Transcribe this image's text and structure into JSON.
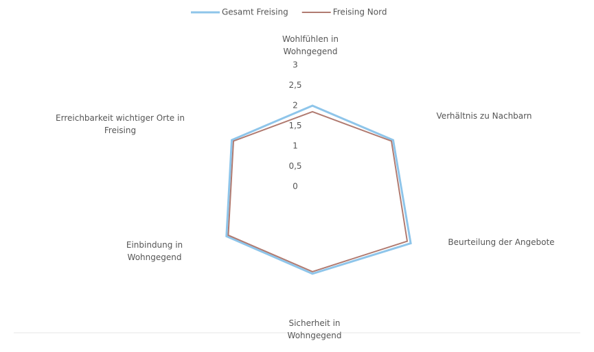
{
  "chart_data": {
    "type": "radar",
    "categories": [
      "Wohlfühlen in Wohngegend",
      "Verhältnis zu Nachbarn",
      "Beurteilung der Angebote",
      "Sicherheit in Wohngegend",
      "Einbindung in Wohngegend",
      "Erreichbarkeit wichtiger Orte in Freising"
    ],
    "series": [
      {
        "name": "Gesamt Freising",
        "color": "#8ec5ea",
        "values": [
          2.0,
          2.3,
          2.8,
          2.15,
          2.45,
          2.3
        ]
      },
      {
        "name": "Freising Nord",
        "color": "#b07a70",
        "values": [
          1.85,
          2.25,
          2.7,
          2.1,
          2.4,
          2.25
        ]
      }
    ],
    "ylim": [
      0,
      3
    ],
    "yticks": [
      0,
      {
        "value": 0.5,
        "label": "0,5"
      },
      1,
      {
        "value": 1.5,
        "label": "1,5"
      },
      2,
      {
        "value": 2.5,
        "label": "2,5"
      },
      3
    ],
    "legend": "top"
  }
}
